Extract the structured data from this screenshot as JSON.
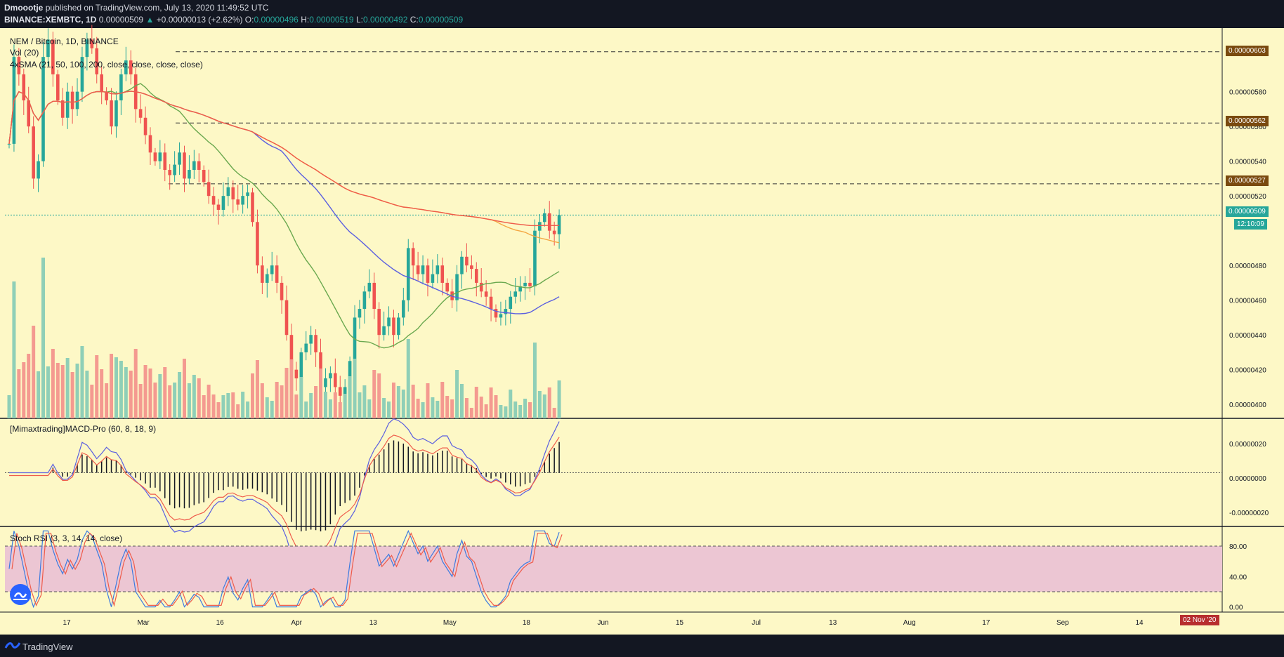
{
  "header": {
    "publisher": "Dmoootje",
    "published_text": "published on TradingView.com, July 13, 2020 11:49:52 UTC",
    "symbol": "BINANCE:XEMBTC, 1D",
    "last": "0.00000509",
    "change": "+0.00000013 (+2.62%)",
    "o_label": "O:",
    "o": "0.00000496",
    "h_label": "H:",
    "h": "0.00000519",
    "l_label": "L:",
    "l": "0.00000492",
    "c_label": "C:",
    "c": "0.00000509"
  },
  "legend": {
    "line1": "NEM / Bitcoin, 1D, BINANCE",
    "line2": "Vol (20)",
    "line3": "4xSMA (21, 50, 100, 200, close, close, close, close)"
  },
  "macd_label": "[Mimaxtrading]MACD-Pro (60, 8, 18, 9)",
  "stoch_label": "Stoch RSI (3, 3, 14, 14, close)",
  "price_tags": {
    "level_603": "0.00000603",
    "level_562": "0.00000562",
    "level_527": "0.00000527",
    "current": "0.00000509",
    "countdown": "12:10:09"
  },
  "date_badge": "02 Nov '20",
  "footer_brand": "TradingView",
  "colors": {
    "background_chart": "#fdf8c6",
    "up": "#26a69a",
    "down": "#ef5350",
    "sma21": "#6aa84f",
    "sma50": "#5b5fe0",
    "sma100": "#f4a742",
    "sma200": "#ef5b4b",
    "stoch_band": "#ecc6d3"
  },
  "chart_data": [
    {
      "type": "candlestick",
      "title": "NEM / Bitcoin, 1D, BINANCE",
      "y_ticks": [
        "0.00000580",
        "0.00000560",
        "0.00000540",
        "0.00000520",
        "0.00000480",
        "0.00000460",
        "0.00000440",
        "0.00000420",
        "0.00000400"
      ],
      "ylim": [
        3.92e-06,
        6.15e-06
      ],
      "x_ticks": [
        "17",
        "Mar",
        "16",
        "Apr",
        "13",
        "May",
        "18",
        "Jun",
        "15",
        "Jul",
        "13",
        "Aug",
        "17",
        "Sep",
        "14"
      ],
      "horizontal_levels": [
        6.03e-06,
        5.62e-06,
        5.27e-06
      ],
      "current_price": 5.09e-06,
      "close_path": [
        5.5e-06,
        6e-06,
        5.9e-06,
        5.75e-06,
        5.6e-06,
        5.3e-06,
        5.4e-06,
        6e-06,
        6.1e-06,
        5.9e-06,
        5.75e-06,
        5.65e-06,
        5.8e-06,
        5.7e-06,
        5.8e-06,
        6e-06,
        6.1e-06,
        6.05e-06,
        5.9e-06,
        5.8e-06,
        5.75e-06,
        5.6e-06,
        5.75e-06,
        5.9e-06,
        5.98e-06,
        5.9e-06,
        5.7e-06,
        5.65e-06,
        5.55e-06,
        5.45e-06,
        5.4e-06,
        5.45e-06,
        5.35e-06,
        5.32e-06,
        5.38e-06,
        5.45e-06,
        5.3e-06,
        5.35e-06,
        5.4e-06,
        5.35e-06,
        5.28e-06,
        5.2e-06,
        5.15e-06,
        5.12e-06,
        5.2e-06,
        5.25e-06,
        5.18e-06,
        5.15e-06,
        5.2e-06,
        5.22e-06,
        5.05e-06,
        4.8e-06,
        4.7e-06,
        4.75e-06,
        4.8e-06,
        4.7e-06,
        4.6e-06,
        4.4e-06,
        4.2e-06,
        4.15e-06,
        4.3e-06,
        4.35e-06,
        4.4e-06,
        4.3e-06,
        4.1e-06,
        4.15e-06,
        4.18e-06,
        4.1e-06,
        4.05e-06,
        4.1e-06,
        4.25e-06,
        4.5e-06,
        4.55e-06,
        4.65e-06,
        4.7e-06,
        4.55e-06,
        4.4e-06,
        4.45e-06,
        4.5e-06,
        4.4e-06,
        4.5e-06,
        4.6e-06,
        4.9e-06,
        4.8e-06,
        4.75e-06,
        4.8e-06,
        4.7e-06,
        4.75e-06,
        4.8e-06,
        4.7e-06,
        4.65e-06,
        4.6e-06,
        4.75e-06,
        4.85e-06,
        4.8e-06,
        4.78e-06,
        4.7e-06,
        4.65e-06,
        4.62e-06,
        4.55e-06,
        4.5e-06,
        4.52e-06,
        4.55e-06,
        4.62e-06,
        4.65e-06,
        4.68e-06,
        4.7e-06,
        4.68e-06,
        5e-06,
        5.05e-06,
        5.1e-06,
        5e-06,
        4.98e-06,
        5.09e-06
      ],
      "sma_series": [
        {
          "name": "21"
        },
        {
          "name": "50"
        },
        {
          "name": "100"
        },
        {
          "name": "200"
        }
      ]
    },
    {
      "type": "line",
      "title": "[Mimaxtrading]MACD-Pro (60, 8, 18, 9)",
      "y_ticks": [
        "0.00000020",
        "0.00000000",
        "-0.00000020"
      ]
    },
    {
      "type": "line",
      "title": "Stoch RSI (3, 3, 14, 14, close)",
      "y_ticks": [
        "80.00",
        "40.00",
        "0.00"
      ],
      "ylim": [
        -5,
        105
      ],
      "band": [
        20,
        80
      ]
    }
  ]
}
